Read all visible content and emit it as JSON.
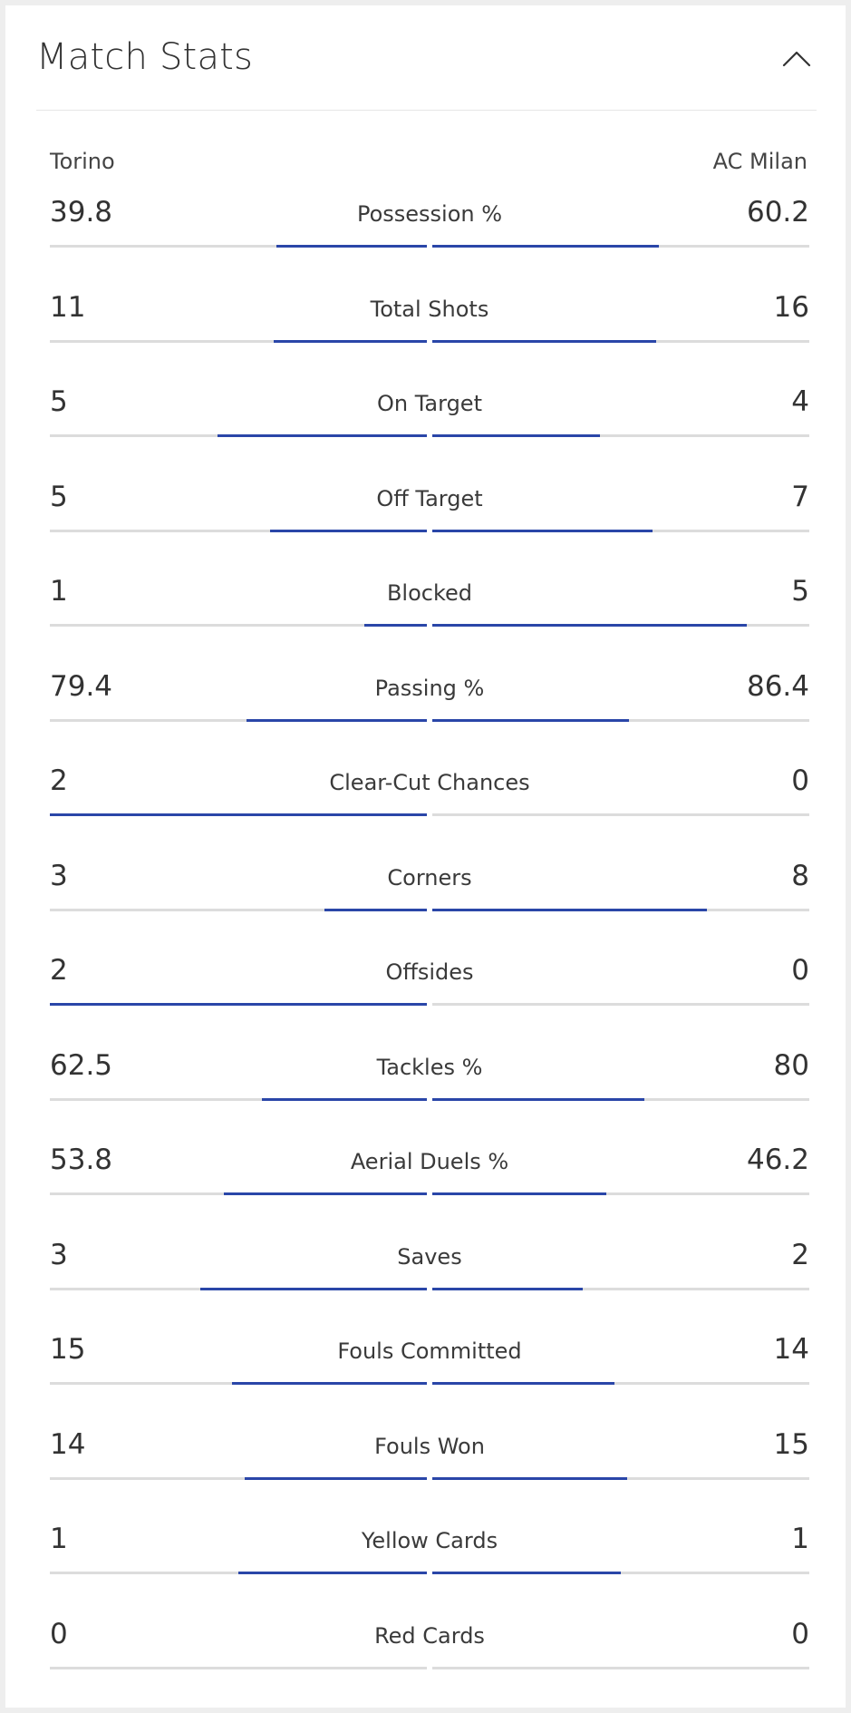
{
  "title": "Match Stats",
  "teams": {
    "home": "Torino",
    "away": "AC Milan"
  },
  "colors": {
    "bar": "#2a46a8",
    "track": "#dcdcdc",
    "divider": "#e6e6e6"
  },
  "icons": {
    "collapse": "chevron-up-icon"
  },
  "stats": [
    {
      "label": "Possession %",
      "home": "39.8",
      "away": "60.2"
    },
    {
      "label": "Total Shots",
      "home": "11",
      "away": "16"
    },
    {
      "label": "On Target",
      "home": "5",
      "away": "4"
    },
    {
      "label": "Off Target",
      "home": "5",
      "away": "7"
    },
    {
      "label": "Blocked",
      "home": "1",
      "away": "5"
    },
    {
      "label": "Passing %",
      "home": "79.4",
      "away": "86.4"
    },
    {
      "label": "Clear-Cut Chances",
      "home": "2",
      "away": "0"
    },
    {
      "label": "Corners",
      "home": "3",
      "away": "8"
    },
    {
      "label": "Offsides",
      "home": "2",
      "away": "0"
    },
    {
      "label": "Tackles %",
      "home": "62.5",
      "away": "80"
    },
    {
      "label": "Aerial Duels %",
      "home": "53.8",
      "away": "46.2"
    },
    {
      "label": "Saves",
      "home": "3",
      "away": "2"
    },
    {
      "label": "Fouls Committed",
      "home": "15",
      "away": "14"
    },
    {
      "label": "Fouls Won",
      "home": "14",
      "away": "15"
    },
    {
      "label": "Yellow Cards",
      "home": "1",
      "away": "1"
    },
    {
      "label": "Red Cards",
      "home": "0",
      "away": "0"
    }
  ]
}
